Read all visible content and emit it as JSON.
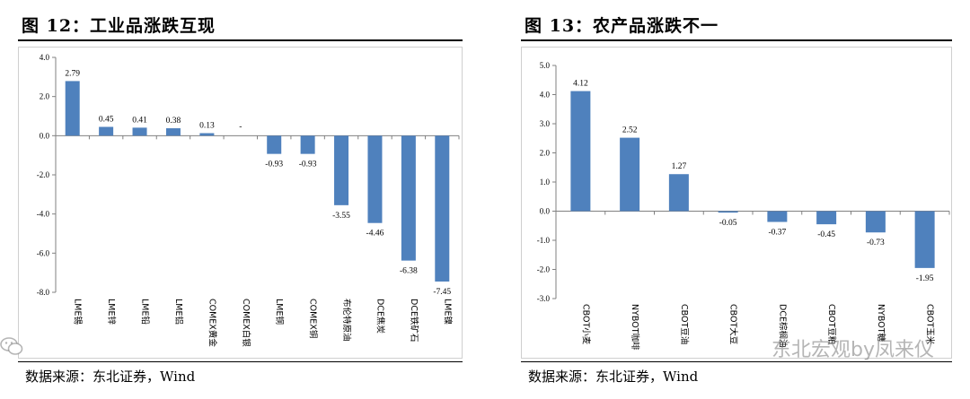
{
  "left": {
    "title": "图  12：工业品涨跌互现",
    "source": "数据来源：东北证券，Wind"
  },
  "right": {
    "title": "图  13：农产品涨跌不一",
    "source": "数据来源：东北证券，Wind"
  },
  "watermark": "东北宏观by凤来仪",
  "colors": {
    "bar": "#4f81bd",
    "axis": "#808080"
  },
  "chart_data": [
    {
      "type": "bar",
      "categories": [
        "LME锡",
        "LME锌",
        "LME铅",
        "LME铝",
        "COMEX黄金",
        "COMEX白银",
        "LME铜",
        "COMEX铜",
        "布伦特原油",
        "DCE焦炭",
        "DCE铁矿石",
        "LME镍"
      ],
      "values": [
        2.79,
        0.45,
        0.41,
        0.38,
        0.13,
        0,
        -0.93,
        -0.93,
        -3.55,
        -4.46,
        -6.38,
        -7.45
      ],
      "data_labels": [
        "2.79",
        "0.45",
        "0.41",
        "0.38",
        "0.13",
        "-",
        "-0.93",
        "-0.93",
        "-3.55",
        "-4.46",
        "-6.38",
        "-7.45"
      ],
      "ylim": [
        -8.0,
        4.0
      ],
      "yticks": [
        "4.0",
        "2.0",
        "0.0",
        "-2.0",
        "-4.0",
        "-6.0",
        "-8.0"
      ],
      "xlabel": "",
      "ylabel": "",
      "grid": false
    },
    {
      "type": "bar",
      "categories": [
        "CBOT小麦",
        "NYBOT咖啡",
        "CBOT豆油",
        "CBOT大豆",
        "DCE棕榈油",
        "CBOT豆粕",
        "NYBOT糖",
        "CBOT玉米"
      ],
      "values": [
        4.12,
        2.52,
        1.27,
        -0.05,
        -0.37,
        -0.45,
        -0.73,
        -1.95
      ],
      "data_labels": [
        "4.12",
        "2.52",
        "1.27",
        "-0.05",
        "-0.37",
        "-0.45",
        "-0.73",
        "-1.95"
      ],
      "ylim": [
        -3.0,
        5.0
      ],
      "yticks": [
        "5.0",
        "4.0",
        "3.0",
        "2.0",
        "1.0",
        "0.0",
        "-1.0",
        "-2.0",
        "-3.0"
      ],
      "xlabel": "",
      "ylabel": "",
      "grid": false
    }
  ]
}
